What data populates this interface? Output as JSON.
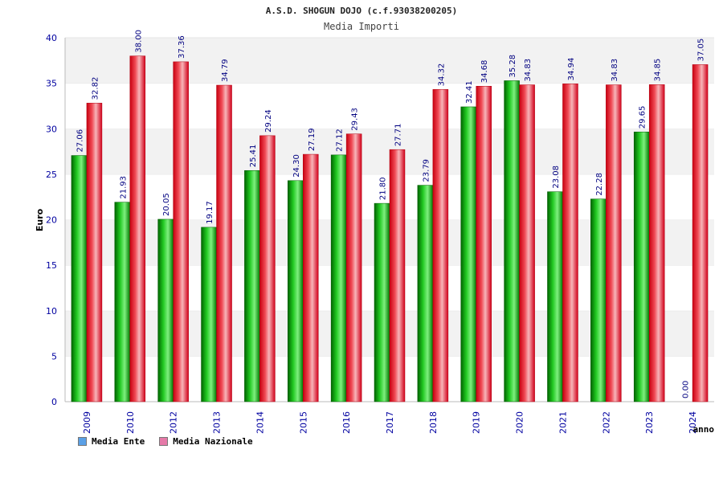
{
  "header": {
    "title": "A.S.D. SHOGUN DOJO (c.f.93038200205)",
    "subtitle": "Media Importi"
  },
  "colors": {
    "ente": "#00a000",
    "nazionale": "#e8242c",
    "axis_text": "#0000a0",
    "value_text": "#000080",
    "band": "#f2f2f2"
  },
  "legend": {
    "items": [
      {
        "label": "Media Ente",
        "color": "#5aa0e6"
      },
      {
        "label": "Media Nazionale",
        "color": "#e57aa8"
      }
    ]
  },
  "chart_data": {
    "type": "bar",
    "title": "A.S.D. SHOGUN DOJO (c.f.93038200205)",
    "subtitle": "Media Importi",
    "xlabel": "anno",
    "ylabel": "Euro",
    "ylim": [
      0,
      40
    ],
    "yticks": [
      0,
      5,
      10,
      15,
      20,
      25,
      30,
      35,
      40
    ],
    "grid": "horizontal bands",
    "legend_position": "bottom-left",
    "categories": [
      "2009",
      "2010",
      "2012",
      "2013",
      "2014",
      "2015",
      "2016",
      "2017",
      "2018",
      "2019",
      "2020",
      "2021",
      "2022",
      "2023",
      "2024"
    ],
    "series": [
      {
        "name": "Media Ente",
        "values": [
          27.06,
          21.93,
          20.05,
          19.17,
          25.41,
          24.3,
          27.12,
          21.8,
          23.79,
          32.41,
          35.28,
          23.08,
          22.28,
          29.65,
          0.0
        ],
        "labels": [
          "27.06",
          "21.93",
          "20.05",
          "19.17",
          "25.41",
          "24.30",
          "27.12",
          "21.80",
          "23.79",
          "32.41",
          "35.28",
          "23.08",
          "22.28",
          "29.65",
          "0.00"
        ]
      },
      {
        "name": "Media Nazionale",
        "values": [
          32.82,
          38.0,
          37.36,
          34.79,
          29.24,
          27.19,
          29.43,
          27.71,
          34.32,
          34.68,
          34.83,
          34.94,
          34.83,
          34.85,
          37.05
        ],
        "labels": [
          "32.82",
          "38.00",
          "37.36",
          "34.79",
          "29.24",
          "27.19",
          "29.43",
          "27.71",
          "34.32",
          "34.68",
          "34.83",
          "34.94",
          "34.83",
          "34.85",
          "37.05"
        ]
      }
    ]
  }
}
